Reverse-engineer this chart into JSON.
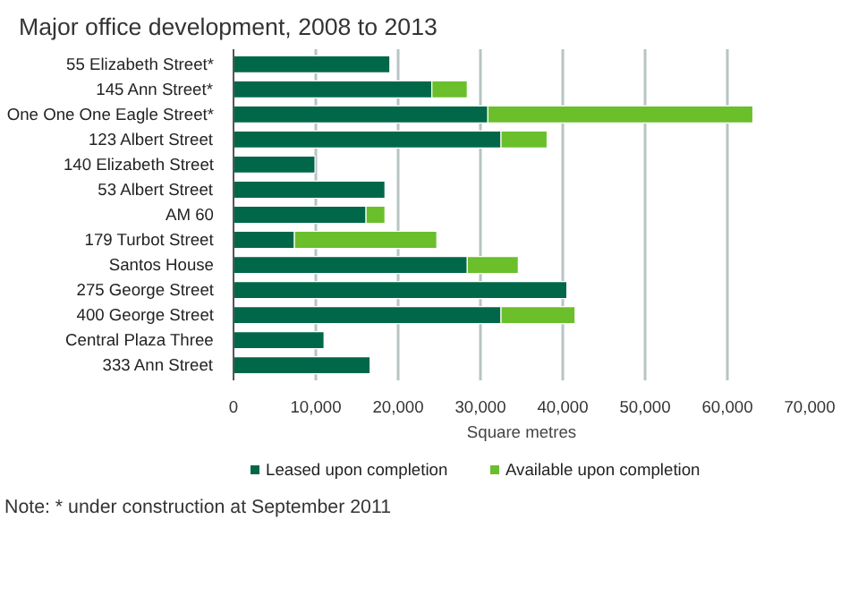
{
  "chart_data": {
    "type": "bar",
    "orientation": "horizontal",
    "stacked": true,
    "title": "Major office development, 2008 to 2013",
    "xlabel": "Square metres",
    "categories": [
      "55 Elizabeth Street*",
      "145 Ann Street*",
      "One One One Eagle Street*",
      "123 Albert Street",
      "140 Elizabeth Street",
      "53 Albert Street",
      "AM 60",
      "179 Turbot Street",
      "Santos House",
      "275 George Street",
      "400 George Street",
      "Central Plaza Three",
      "333 Ann Street"
    ],
    "series": [
      {
        "name": "Leased upon completion",
        "color": "#006849",
        "values": [
          19000,
          24100,
          30900,
          32500,
          9900,
          18400,
          16100,
          7400,
          28400,
          40500,
          32500,
          11000,
          16600
        ]
      },
      {
        "name": "Available upon completion",
        "color": "#6abf2b",
        "values": [
          null,
          4300,
          32200,
          5600,
          null,
          null,
          2300,
          17300,
          6200,
          null,
          9000,
          null,
          null
        ]
      }
    ],
    "xlim": [
      0,
      70000
    ],
    "xticks": [
      0,
      {
        "value": 10000,
        "label": "10,000"
      },
      {
        "value": 20000,
        "label": "20,000"
      },
      {
        "value": 30000,
        "label": "30,000"
      },
      {
        "value": 40000,
        "label": "40,000"
      },
      {
        "value": 50000,
        "label": "50,000"
      },
      {
        "value": 60000,
        "label": "60,000"
      },
      {
        "value": 70000,
        "label": "70,000"
      }
    ],
    "grid": "x",
    "legend": "bottom",
    "annotations": [
      "Note: * under construction at September 2011"
    ]
  }
}
